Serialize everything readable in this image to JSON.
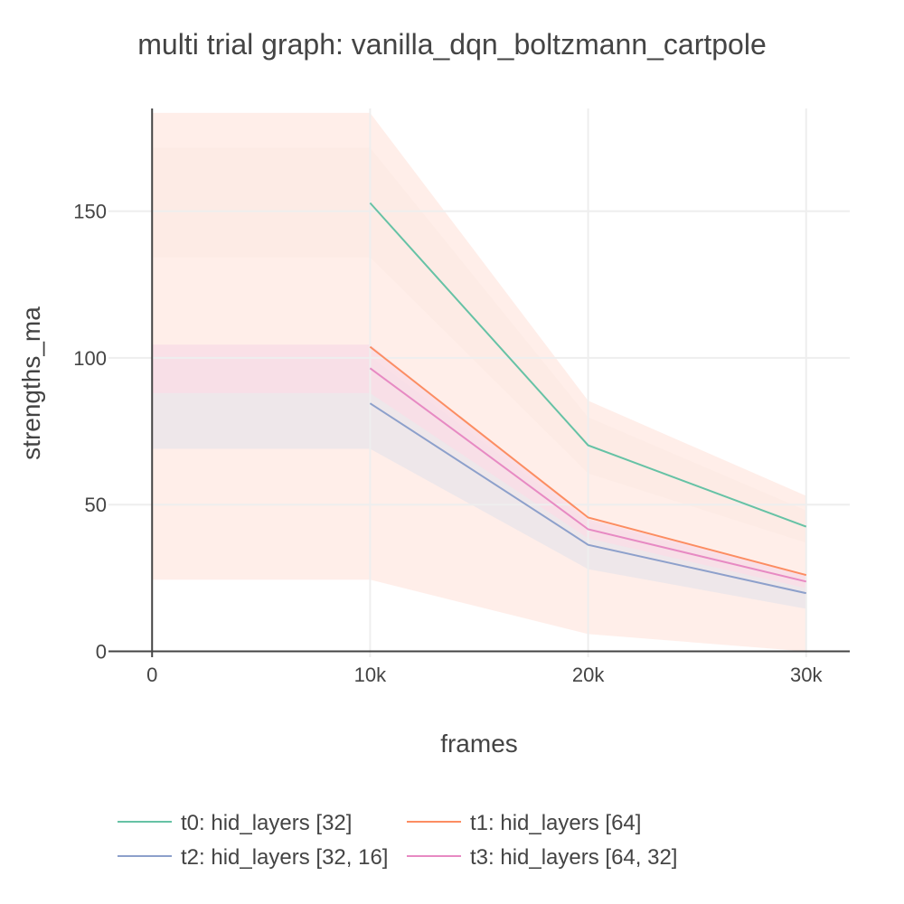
{
  "chart_data": {
    "type": "line",
    "title": "multi trial graph: vanilla_dqn_boltzmann_cartpole",
    "xlabel": "frames",
    "ylabel": "strengths_ma",
    "x": [
      0,
      10000,
      20000,
      30000
    ],
    "xlim": [
      -2000,
      32000
    ],
    "ylim": [
      -2,
      185
    ],
    "x_ticks": [
      0,
      10000,
      20000,
      30000
    ],
    "x_tick_labels": [
      "0",
      "10k",
      "20k",
      "30k"
    ],
    "y_ticks": [
      0,
      50,
      100,
      150
    ],
    "y_tick_labels": [
      "0",
      "50",
      "100",
      "150"
    ],
    "grid": true,
    "legend_position": "bottom",
    "series": [
      {
        "name": "t0: hid_layers [32]",
        "color": "#66c2a5",
        "band_color": "#ede7dd",
        "values": [
          null,
          152.8,
          70.2,
          42.5
        ],
        "lower": [
          134.3,
          134.3,
          60.6,
          37.0
        ],
        "upper": [
          171.6,
          171.6,
          79.8,
          48.0
        ]
      },
      {
        "name": "t1: hid_layers [64]",
        "color": "#fc8d62",
        "band_color": "#ffebe5",
        "values": [
          null,
          103.8,
          45.6,
          26.0
        ],
        "lower": [
          24.4,
          24.4,
          5.9,
          0.0
        ],
        "upper": [
          183.5,
          183.5,
          85.4,
          53.0
        ]
      },
      {
        "name": "t2: hid_layers [32, 16]",
        "color": "#8da0cb",
        "band_color": "#ebe5ea",
        "values": [
          null,
          84.5,
          36.3,
          19.8
        ],
        "lower": [
          69.0,
          69.0,
          28.0,
          14.5
        ],
        "upper": [
          100.6,
          100.6,
          44.0,
          25.5
        ]
      },
      {
        "name": "t3: hid_layers [64, 32]",
        "color": "#e78ac3",
        "band_color": "#f9dde6",
        "values": [
          null,
          96.5,
          41.6,
          23.8
        ],
        "lower": [
          88.0,
          88.0,
          38.5,
          21.5
        ],
        "upper": [
          104.5,
          104.5,
          45.0,
          26.0
        ]
      }
    ]
  }
}
